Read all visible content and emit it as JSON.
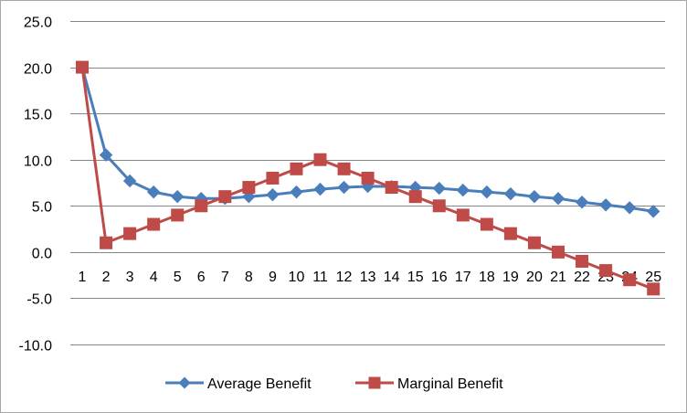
{
  "chart_data": {
    "type": "line",
    "x": [
      1,
      2,
      3,
      4,
      5,
      6,
      7,
      8,
      9,
      10,
      11,
      12,
      13,
      14,
      15,
      16,
      17,
      18,
      19,
      20,
      21,
      22,
      23,
      24,
      25
    ],
    "series": [
      {
        "name": "Average Benefit",
        "color": "#4a7ebb",
        "marker": "diamond",
        "values": [
          20.0,
          10.5,
          7.7,
          6.5,
          6.0,
          5.8,
          5.8,
          6.0,
          6.2,
          6.5,
          6.8,
          7.0,
          7.1,
          7.1,
          7.0,
          6.9,
          6.7,
          6.5,
          6.3,
          6.0,
          5.8,
          5.4,
          5.1,
          4.8,
          4.4
        ]
      },
      {
        "name": "Marginal Benefit",
        "color": "#be4b48",
        "marker": "square",
        "values": [
          20,
          1,
          2,
          3,
          4,
          5,
          6,
          7,
          8,
          9,
          10,
          9,
          8,
          7,
          6,
          5,
          4,
          3,
          2,
          1,
          0,
          -1,
          -2,
          -3,
          -4
        ]
      }
    ],
    "ylim": [
      -10,
      25
    ],
    "yticks": [
      "25.0",
      "20.0",
      "15.0",
      "10.0",
      "5.0",
      "0.0",
      "-5.0",
      "-10.0"
    ],
    "ytick_values": [
      25,
      20,
      15,
      10,
      5,
      0,
      -5,
      -10
    ],
    "xticks": [
      "1",
      "2",
      "3",
      "4",
      "5",
      "6",
      "7",
      "8",
      "9",
      "10",
      "11",
      "12",
      "13",
      "14",
      "15",
      "16",
      "17",
      "18",
      "19",
      "20",
      "21",
      "22",
      "23",
      "24",
      "25"
    ],
    "grid": true,
    "legend_position": "bottom"
  }
}
